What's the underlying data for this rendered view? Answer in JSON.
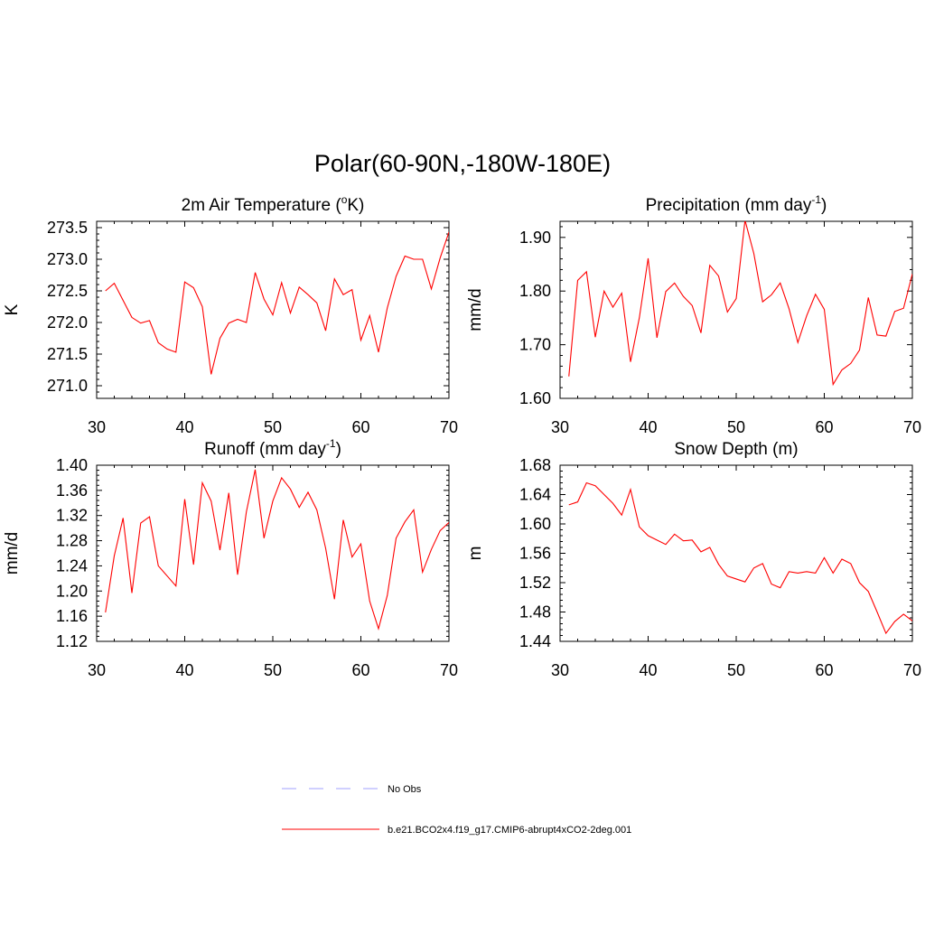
{
  "main_title": "Polar(60-90N,-180W-180E)",
  "colors": {
    "model_line": "#ff0000",
    "obs_line": "#a0a0ff",
    "axis": "#000000"
  },
  "legend": {
    "entries": [
      {
        "label": "No Obs",
        "style": "dashed",
        "color": "#a0a0ff"
      },
      {
        "label": "b.e21.BCO2x4.f19_g17.CMIP6-abrupt4xCO2-2deg.001",
        "style": "solid",
        "color": "#ff0000"
      }
    ]
  },
  "chart_data": [
    {
      "type": "line",
      "title": "2m Air Temperature",
      "title_parts": {
        "before": "2m Air Temperature (",
        "sup": "o",
        "after": "K)"
      },
      "xlabel": "",
      "ylabel": "K",
      "xlim": [
        30,
        70
      ],
      "ylim": [
        270.8,
        273.6
      ],
      "xticks": [
        30,
        40,
        50,
        60,
        70
      ],
      "yticks": [
        271.0,
        271.5,
        272.0,
        272.5,
        273.0,
        273.5
      ],
      "ytick_labels": [
        "271.0",
        "271.5",
        "272.0",
        "272.5",
        "273.0",
        "273.5"
      ],
      "x": [
        31,
        32,
        33,
        34,
        35,
        36,
        37,
        38,
        39,
        40,
        41,
        42,
        43,
        44,
        45,
        46,
        47,
        48,
        49,
        50,
        51,
        52,
        53,
        54,
        55,
        56,
        57,
        58,
        59,
        60,
        61,
        62,
        63,
        64,
        65,
        66,
        67,
        68,
        69,
        70
      ],
      "series": [
        {
          "name": "b.e21.BCO2x4.f19_g17.CMIP6-abrupt4xCO2-2deg.001",
          "values": [
            272.5,
            272.62,
            272.35,
            272.08,
            271.99,
            272.03,
            271.68,
            271.58,
            271.53,
            272.64,
            272.55,
            272.25,
            271.18,
            271.75,
            271.99,
            272.05,
            272.0,
            272.79,
            272.37,
            272.12,
            272.63,
            272.15,
            272.56,
            272.44,
            272.31,
            271.87,
            272.69,
            272.44,
            272.52,
            271.72,
            272.11,
            271.53,
            272.23,
            272.73,
            273.05,
            273.0,
            273.0,
            272.53,
            273.02,
            273.43
          ]
        }
      ]
    },
    {
      "type": "line",
      "title": "Precipitation",
      "title_parts": {
        "before": "Precipitation (mm day",
        "sup": "-1",
        "after": ")"
      },
      "xlabel": "",
      "ylabel": "mm/d",
      "xlim": [
        30,
        70
      ],
      "ylim": [
        1.6,
        1.93
      ],
      "xticks": [
        30,
        40,
        50,
        60,
        70
      ],
      "yticks": [
        1.6,
        1.7,
        1.8,
        1.9
      ],
      "ytick_labels": [
        "1.60",
        "1.70",
        "1.80",
        "1.90"
      ],
      "x": [
        31,
        32,
        33,
        34,
        35,
        36,
        37,
        38,
        39,
        40,
        41,
        42,
        43,
        44,
        45,
        46,
        47,
        48,
        49,
        50,
        51,
        52,
        53,
        54,
        55,
        56,
        57,
        58,
        59,
        60,
        61,
        62,
        63,
        64,
        65,
        66,
        67,
        68,
        69,
        70
      ],
      "series": [
        {
          "name": "b.e21.BCO2x4.f19_g17.CMIP6-abrupt4xCO2-2deg.001",
          "values": [
            1.641,
            1.82,
            1.836,
            1.714,
            1.8,
            1.77,
            1.796,
            1.668,
            1.75,
            1.861,
            1.713,
            1.799,
            1.815,
            1.79,
            1.773,
            1.722,
            1.848,
            1.828,
            1.761,
            1.786,
            1.932,
            1.87,
            1.78,
            1.793,
            1.815,
            1.767,
            1.704,
            1.754,
            1.794,
            1.766,
            1.626,
            1.653,
            1.665,
            1.69,
            1.788,
            1.718,
            1.716,
            1.762,
            1.768,
            1.832
          ]
        }
      ]
    },
    {
      "type": "line",
      "title": "Runoff",
      "title_parts": {
        "before": "Runoff (mm day",
        "sup": "-1",
        "after": ")"
      },
      "xlabel": "",
      "ylabel": "mm/d",
      "xlim": [
        30,
        70
      ],
      "ylim": [
        1.12,
        1.4
      ],
      "xticks": [
        30,
        40,
        50,
        60,
        70
      ],
      "yticks": [
        1.12,
        1.16,
        1.2,
        1.24,
        1.28,
        1.32,
        1.36,
        1.4
      ],
      "ytick_labels": [
        "1.12",
        "1.16",
        "1.20",
        "1.24",
        "1.28",
        "1.32",
        "1.36",
        "1.40"
      ],
      "x": [
        31,
        32,
        33,
        34,
        35,
        36,
        37,
        38,
        39,
        40,
        41,
        42,
        43,
        44,
        45,
        46,
        47,
        48,
        49,
        50,
        51,
        52,
        53,
        54,
        55,
        56,
        57,
        58,
        59,
        60,
        61,
        62,
        63,
        64,
        65,
        66,
        67,
        68,
        69,
        70
      ],
      "series": [
        {
          "name": "b.e21.BCO2x4.f19_g17.CMIP6-abrupt4xCO2-2deg.001",
          "values": [
            1.166,
            1.256,
            1.316,
            1.197,
            1.308,
            1.318,
            1.24,
            1.224,
            1.208,
            1.346,
            1.242,
            1.372,
            1.343,
            1.265,
            1.356,
            1.226,
            1.326,
            1.393,
            1.284,
            1.343,
            1.38,
            1.362,
            1.333,
            1.357,
            1.329,
            1.268,
            1.187,
            1.313,
            1.254,
            1.275,
            1.184,
            1.14,
            1.193,
            1.284,
            1.31,
            1.329,
            1.23,
            1.266,
            1.296,
            1.309
          ]
        }
      ]
    },
    {
      "type": "line",
      "title": "Snow Depth (m)",
      "title_parts": {
        "before": "Snow Depth (m)",
        "sup": "",
        "after": ""
      },
      "xlabel": "",
      "ylabel": "m",
      "xlim": [
        30,
        70
      ],
      "ylim": [
        1.44,
        1.68
      ],
      "xticks": [
        30,
        40,
        50,
        60,
        70
      ],
      "yticks": [
        1.44,
        1.48,
        1.52,
        1.56,
        1.6,
        1.64,
        1.68
      ],
      "ytick_labels": [
        "1.44",
        "1.48",
        "1.52",
        "1.56",
        "1.60",
        "1.64",
        "1.68"
      ],
      "x": [
        31,
        32,
        33,
        34,
        35,
        36,
        37,
        38,
        39,
        40,
        41,
        42,
        43,
        44,
        45,
        46,
        47,
        48,
        49,
        50,
        51,
        52,
        53,
        54,
        55,
        56,
        57,
        58,
        59,
        60,
        61,
        62,
        63,
        64,
        65,
        66,
        67,
        68,
        69,
        70
      ],
      "series": [
        {
          "name": "b.e21.BCO2x4.f19_g17.CMIP6-abrupt4xCO2-2deg.001",
          "values": [
            1.626,
            1.63,
            1.656,
            1.652,
            1.64,
            1.628,
            1.612,
            1.647,
            1.596,
            1.584,
            1.578,
            1.572,
            1.586,
            1.577,
            1.578,
            1.562,
            1.568,
            1.545,
            1.529,
            1.525,
            1.521,
            1.54,
            1.546,
            1.518,
            1.513,
            1.535,
            1.533,
            1.535,
            1.533,
            1.554,
            1.533,
            1.552,
            1.546,
            1.52,
            1.508,
            1.48,
            1.451,
            1.467,
            1.477,
            1.468
          ]
        }
      ]
    }
  ]
}
